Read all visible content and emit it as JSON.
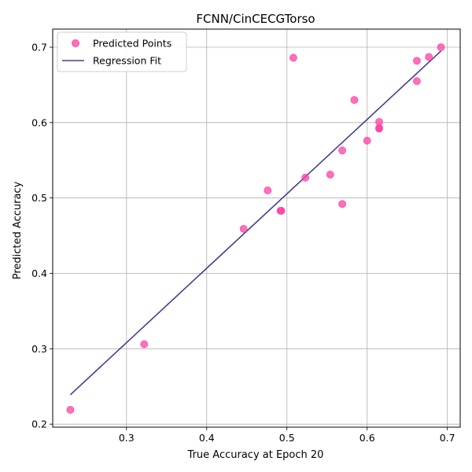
{
  "chart_data": {
    "type": "scatter",
    "title": "FCNN/CinCECGTorso",
    "xlabel": "True Accuracy at Epoch 20",
    "ylabel": "Predicted Accuracy",
    "xlim": [
      0.208,
      0.716
    ],
    "ylim": [
      0.196,
      0.724
    ],
    "xticks": [
      0.3,
      0.4,
      0.5,
      0.6,
      0.7
    ],
    "yticks": [
      0.2,
      0.3,
      0.4,
      0.5,
      0.6,
      0.7
    ],
    "grid": true,
    "legend_position": "top-left",
    "series": [
      {
        "name": "Predicted Points",
        "kind": "scatter",
        "color": "#ff3fa4",
        "points": [
          [
            0.23,
            0.219
          ],
          [
            0.322,
            0.306
          ],
          [
            0.446,
            0.459
          ],
          [
            0.476,
            0.51
          ],
          [
            0.492,
            0.483
          ],
          [
            0.493,
            0.483
          ],
          [
            0.508,
            0.686
          ],
          [
            0.523,
            0.527
          ],
          [
            0.554,
            0.531
          ],
          [
            0.569,
            0.492
          ],
          [
            0.569,
            0.563
          ],
          [
            0.584,
            0.63
          ],
          [
            0.6,
            0.576
          ],
          [
            0.615,
            0.601
          ],
          [
            0.615,
            0.593
          ],
          [
            0.615,
            0.592
          ],
          [
            0.662,
            0.682
          ],
          [
            0.662,
            0.655
          ],
          [
            0.677,
            0.687
          ],
          [
            0.692,
            0.7
          ]
        ]
      },
      {
        "name": "Regression Fit",
        "kind": "line",
        "color": "#483d8b",
        "points": [
          [
            0.23,
            0.239
          ],
          [
            0.692,
            0.695
          ]
        ]
      }
    ]
  }
}
